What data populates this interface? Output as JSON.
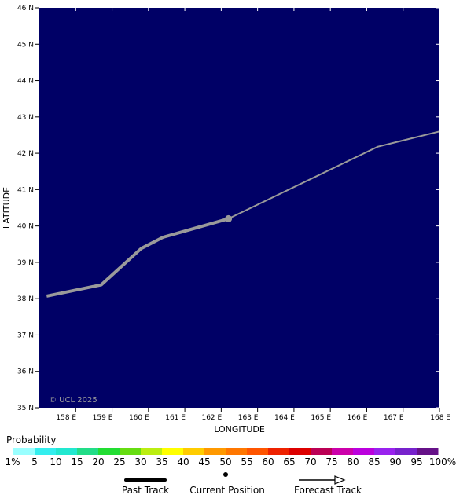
{
  "map": {
    "background_color": "#000066",
    "lon_range": [
      157,
      168
    ],
    "lat_range": [
      35,
      46
    ],
    "lon_ticks": [
      158,
      159,
      160,
      161,
      162,
      163,
      164,
      165,
      166,
      167,
      168
    ],
    "lat_ticks": [
      35,
      36,
      37,
      38,
      39,
      40,
      41,
      42,
      43,
      44,
      45,
      46
    ],
    "lon_tick_labels": [
      "158 E",
      "159 E",
      "160 E",
      "161 E",
      "162 E",
      "163 E",
      "164 E",
      "165 E",
      "166 E",
      "167 E",
      "168 E"
    ],
    "lat_tick_labels": [
      "35 N",
      "36 N",
      "37 N",
      "38 N",
      "39 N",
      "40 N",
      "41 N",
      "42 N",
      "43 N",
      "44 N",
      "45 N",
      "46 N"
    ],
    "xlabel": "LONGITUDE",
    "ylabel": "LATITUDE",
    "copyright": "© UCL 2025"
  },
  "tracks": {
    "color": "#9a9a9a",
    "past": [
      [
        157.2,
        38.07
      ],
      [
        158.7,
        38.38
      ],
      [
        159.8,
        39.38
      ],
      [
        160.4,
        39.69
      ],
      [
        162.2,
        40.2
      ]
    ],
    "current": [
      162.2,
      40.2
    ],
    "forecast": [
      [
        162.2,
        40.2
      ],
      [
        166.3,
        42.18
      ],
      [
        168.0,
        42.6
      ]
    ]
  },
  "legend": {
    "title": "Probability",
    "labels": [
      "1%",
      "5",
      "10",
      "15",
      "20",
      "25",
      "30",
      "35",
      "40",
      "45",
      "50",
      "55",
      "60",
      "65",
      "70",
      "75",
      "80",
      "85",
      "90",
      "95",
      "100%"
    ],
    "colors": [
      "#99ffff",
      "#33eeee",
      "#22e8d0",
      "#22dd88",
      "#22dd33",
      "#66dd11",
      "#bbee11",
      "#ffff00",
      "#ffcc00",
      "#ff9900",
      "#ff7700",
      "#ff5500",
      "#ee2200",
      "#dd0000",
      "#bb0055",
      "#cc00aa",
      "#bb00dd",
      "#9922ee",
      "#7722cc",
      "#661188"
    ],
    "past_track_label": "Past Track",
    "current_position_label": "Current Position",
    "forecast_track_label": "Forecast Track"
  }
}
